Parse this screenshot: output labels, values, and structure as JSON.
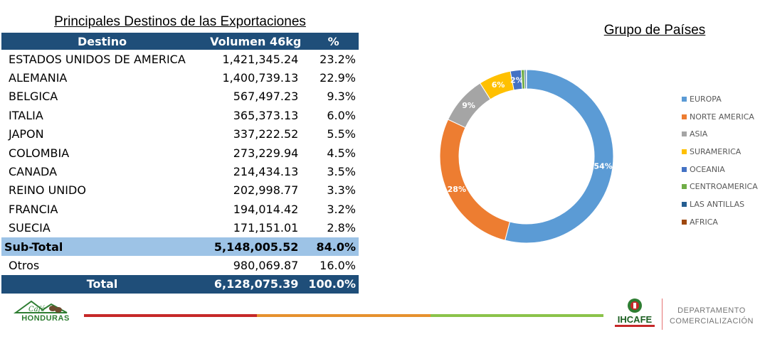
{
  "table": {
    "title": "Principales Destinos de las Exportaciones",
    "headers": {
      "destino": "Destino",
      "volumen": "Volumen 46kg",
      "pct": "%"
    },
    "rows": [
      {
        "destino": "ESTADOS UNIDOS DE AMERICA",
        "volumen": "1,421,345.24",
        "pct": "23.2%"
      },
      {
        "destino": "ALEMANIA",
        "volumen": "1,400,739.13",
        "pct": "22.9%"
      },
      {
        "destino": "BELGICA",
        "volumen": "567,497.23",
        "pct": "9.3%"
      },
      {
        "destino": "ITALIA",
        "volumen": "365,373.13",
        "pct": "6.0%"
      },
      {
        "destino": "JAPON",
        "volumen": "337,222.52",
        "pct": "5.5%"
      },
      {
        "destino": "COLOMBIA",
        "volumen": "273,229.94",
        "pct": "4.5%"
      },
      {
        "destino": "CANADA",
        "volumen": "214,434.13",
        "pct": "3.5%"
      },
      {
        "destino": "REINO UNIDO",
        "volumen": "202,998.77",
        "pct": "3.3%"
      },
      {
        "destino": "FRANCIA",
        "volumen": "194,014.42",
        "pct": "3.2%"
      },
      {
        "destino": "SUECIA",
        "volumen": "171,151.01",
        "pct": "2.8%"
      }
    ],
    "subtotal": {
      "destino": "Sub-Total",
      "volumen": "5,148,005.52",
      "pct": "84.0%"
    },
    "otros": {
      "destino": "Otros",
      "volumen": "980,069.87",
      "pct": "16.0%"
    },
    "total": {
      "destino": "Total",
      "volumen": "6,128,075.39",
      "pct": "100.0%"
    }
  },
  "chart_data": {
    "type": "pie",
    "title": "Grupo de Países",
    "legend_position": "right",
    "categories": [
      "EUROPA",
      "NORTE AMERICA",
      "ASIA",
      "SURAMERICA",
      "OCEANIA",
      "CENTROAMERICA",
      "LAS ANTILLAS",
      "AFRICA"
    ],
    "values": [
      54,
      28,
      9,
      6,
      2,
      0.6,
      0.3,
      0.1
    ],
    "data_labels": [
      "54%",
      "28%",
      "9%",
      "6%",
      "2%",
      "",
      "",
      ""
    ],
    "colors": [
      "#5b9bd5",
      "#ed7d31",
      "#a5a5a5",
      "#ffc000",
      "#4472c4",
      "#70ad47",
      "#255e91",
      "#9e480e"
    ]
  },
  "footer": {
    "left_logo_small": "Café",
    "left_logo": "HONDURAS",
    "right_logo": "IHCAFE",
    "department_line1": "DEPARTAMENTO",
    "department_line2": "COMERCIALIZACIÓN",
    "line_colors": [
      "#c62828",
      "#e6912e",
      "#8bc34a"
    ]
  }
}
